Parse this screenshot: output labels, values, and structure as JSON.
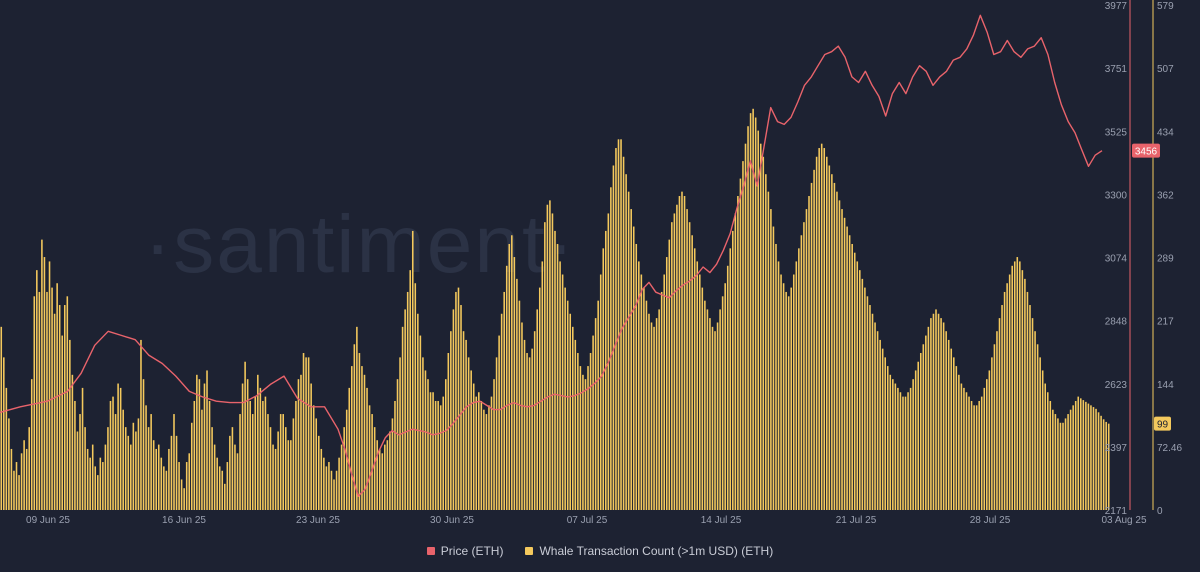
{
  "chart_data": {
    "type": "bar",
    "watermark": "·santiment·",
    "x_ticks": [
      "09 Jun 25",
      "16 Jun 25",
      "23 Jun 25",
      "30 Jun 25",
      "07 Jul 25",
      "14 Jul 25",
      "21 Jul 25",
      "28 Jul 25",
      "03 Aug 25"
    ],
    "price_axis": {
      "ticks": [
        "3977",
        "3751",
        "3525",
        "3300",
        "3074",
        "2848",
        "2623",
        "2397",
        "2171"
      ],
      "min": 2171,
      "max": 3977,
      "current_label": "3456",
      "current_value": 3456
    },
    "count_axis": {
      "ticks": [
        "579",
        "507",
        "434",
        "362",
        "289",
        "217",
        "144",
        "72.46",
        "0"
      ],
      "min": 0,
      "max": 579,
      "current_label": "99",
      "current_value": 99
    },
    "colors": {
      "price": "#e8636b",
      "whale": "#f4c95d",
      "background": "#1d2232",
      "axis_text": "#9aa0b0"
    },
    "series": [
      {
        "name": "Price (ETH)",
        "axis": "right-outer",
        "render": "line",
        "points": [
          [
            0,
            2520
          ],
          [
            3,
            2540
          ],
          [
            7,
            2560
          ],
          [
            10,
            2595
          ],
          [
            12,
            2660
          ],
          [
            14,
            2760
          ],
          [
            16,
            2810
          ],
          [
            18,
            2795
          ],
          [
            20,
            2780
          ],
          [
            22,
            2725
          ],
          [
            24,
            2695
          ],
          [
            26,
            2650
          ],
          [
            28,
            2595
          ],
          [
            30,
            2575
          ],
          [
            32,
            2560
          ],
          [
            34,
            2555
          ],
          [
            36,
            2555
          ],
          [
            38,
            2580
          ],
          [
            40,
            2620
          ],
          [
            42,
            2650
          ],
          [
            44,
            2570
          ],
          [
            46,
            2540
          ],
          [
            48,
            2540
          ],
          [
            49,
            2500
          ],
          [
            50,
            2460
          ],
          [
            51,
            2390
          ],
          [
            52,
            2300
          ],
          [
            53,
            2220
          ],
          [
            54,
            2245
          ],
          [
            55,
            2310
          ],
          [
            56,
            2380
          ],
          [
            57,
            2430
          ],
          [
            58,
            2455
          ],
          [
            59,
            2440
          ],
          [
            60,
            2450
          ],
          [
            61,
            2460
          ],
          [
            62,
            2455
          ],
          [
            63,
            2450
          ],
          [
            64,
            2440
          ],
          [
            65,
            2445
          ],
          [
            66,
            2455
          ],
          [
            67,
            2480
          ],
          [
            68,
            2510
          ],
          [
            69,
            2540
          ],
          [
            70,
            2555
          ],
          [
            71,
            2560
          ],
          [
            72,
            2545
          ],
          [
            73,
            2530
          ],
          [
            74,
            2530
          ],
          [
            75,
            2545
          ],
          [
            76,
            2555
          ],
          [
            77,
            2545
          ],
          [
            78,
            2540
          ],
          [
            79,
            2545
          ],
          [
            80,
            2560
          ],
          [
            81,
            2575
          ],
          [
            82,
            2585
          ],
          [
            83,
            2580
          ],
          [
            84,
            2575
          ],
          [
            85,
            2580
          ],
          [
            86,
            2590
          ],
          [
            87,
            2605
          ],
          [
            88,
            2625
          ],
          [
            89,
            2650
          ],
          [
            90,
            2700
          ],
          [
            91,
            2760
          ],
          [
            92,
            2820
          ],
          [
            93,
            2860
          ],
          [
            94,
            2900
          ],
          [
            95,
            2960
          ],
          [
            96,
            2985
          ],
          [
            97,
            2950
          ],
          [
            98,
            2940
          ],
          [
            99,
            2930
          ],
          [
            100,
            2955
          ],
          [
            101,
            2975
          ],
          [
            102,
            2990
          ],
          [
            103,
            3010
          ],
          [
            104,
            3040
          ],
          [
            105,
            3020
          ],
          [
            106,
            3050
          ],
          [
            107,
            3100
          ],
          [
            108,
            3160
          ],
          [
            109,
            3250
          ],
          [
            110,
            3330
          ],
          [
            111,
            3420
          ],
          [
            112,
            3330
          ],
          [
            113,
            3470
          ],
          [
            114,
            3610
          ],
          [
            115,
            3560
          ],
          [
            116,
            3550
          ],
          [
            117,
            3575
          ],
          [
            118,
            3630
          ],
          [
            119,
            3690
          ],
          [
            120,
            3720
          ],
          [
            121,
            3760
          ],
          [
            122,
            3800
          ],
          [
            123,
            3810
          ],
          [
            124,
            3830
          ],
          [
            125,
            3790
          ],
          [
            126,
            3720
          ],
          [
            127,
            3700
          ],
          [
            128,
            3740
          ],
          [
            129,
            3690
          ],
          [
            130,
            3650
          ],
          [
            131,
            3580
          ],
          [
            132,
            3660
          ],
          [
            133,
            3700
          ],
          [
            134,
            3660
          ],
          [
            135,
            3720
          ],
          [
            136,
            3760
          ],
          [
            137,
            3740
          ],
          [
            138,
            3690
          ],
          [
            139,
            3720
          ],
          [
            140,
            3740
          ],
          [
            141,
            3780
          ],
          [
            142,
            3790
          ],
          [
            143,
            3820
          ],
          [
            144,
            3870
          ],
          [
            145,
            3940
          ],
          [
            146,
            3880
          ],
          [
            147,
            3800
          ],
          [
            148,
            3810
          ],
          [
            149,
            3850
          ],
          [
            150,
            3810
          ],
          [
            151,
            3790
          ],
          [
            152,
            3820
          ],
          [
            153,
            3830
          ],
          [
            154,
            3860
          ],
          [
            155,
            3800
          ],
          [
            156,
            3700
          ],
          [
            157,
            3620
          ],
          [
            158,
            3560
          ],
          [
            159,
            3520
          ],
          [
            160,
            3460
          ],
          [
            161,
            3400
          ],
          [
            162,
            3440
          ],
          [
            163,
            3456
          ]
        ]
      },
      {
        "name": "Whale Transaction Count (>1m USD) (ETH)",
        "axis": "right-inner",
        "render": "bars",
        "values": [
          210,
          175,
          140,
          105,
          70,
          45,
          55,
          40,
          65,
          80,
          70,
          95,
          150,
          245,
          275,
          250,
          310,
          290,
          250,
          285,
          255,
          225,
          260,
          235,
          200,
          235,
          245,
          195,
          155,
          125,
          90,
          110,
          140,
          95,
          70,
          60,
          75,
          50,
          40,
          60,
          55,
          75,
          95,
          125,
          130,
          110,
          145,
          140,
          115,
          95,
          85,
          75,
          100,
          90,
          105,
          195,
          150,
          120,
          95,
          110,
          80,
          70,
          75,
          60,
          50,
          45,
          70,
          85,
          110,
          85,
          55,
          35,
          25,
          55,
          65,
          100,
          125,
          155,
          150,
          115,
          145,
          160,
          125,
          95,
          75,
          60,
          50,
          45,
          30,
          55,
          85,
          95,
          75,
          65,
          110,
          145,
          170,
          150,
          125,
          110,
          130,
          155,
          140,
          125,
          130,
          110,
          95,
          75,
          70,
          90,
          110,
          110,
          95,
          80,
          80,
          105,
          125,
          150,
          155,
          180,
          175,
          175,
          145,
          120,
          105,
          85,
          70,
          60,
          50,
          55,
          45,
          35,
          45,
          60,
          75,
          95,
          115,
          140,
          165,
          190,
          210,
          180,
          165,
          155,
          140,
          120,
          110,
          95,
          80,
          70,
          65,
          75,
          80,
          90,
          105,
          125,
          150,
          175,
          210,
          230,
          250,
          275,
          320,
          260,
          225,
          200,
          175,
          160,
          150,
          135,
          135,
          125,
          125,
          120,
          130,
          150,
          180,
          205,
          230,
          250,
          255,
          235,
          205,
          195,
          175,
          160,
          145,
          130,
          135,
          125,
          115,
          110,
          120,
          130,
          150,
          175,
          200,
          225,
          250,
          280,
          305,
          315,
          290,
          265,
          240,
          215,
          195,
          180,
          175,
          185,
          205,
          230,
          255,
          285,
          330,
          350,
          355,
          340,
          320,
          305,
          285,
          270,
          255,
          240,
          225,
          210,
          195,
          180,
          165,
          155,
          150,
          165,
          180,
          200,
          220,
          240,
          270,
          300,
          320,
          340,
          370,
          395,
          415,
          425,
          425,
          405,
          385,
          365,
          345,
          325,
          305,
          285,
          270,
          255,
          240,
          225,
          215,
          210,
          220,
          230,
          250,
          270,
          290,
          310,
          330,
          340,
          350,
          360,
          365,
          360,
          345,
          330,
          315,
          300,
          285,
          270,
          255,
          240,
          230,
          220,
          210,
          205,
          215,
          230,
          245,
          260,
          280,
          300,
          320,
          340,
          360,
          380,
          400,
          420,
          440,
          455,
          460,
          450,
          435,
          420,
          405,
          385,
          365,
          345,
          325,
          305,
          285,
          270,
          260,
          250,
          245,
          255,
          270,
          285,
          300,
          315,
          330,
          345,
          360,
          375,
          390,
          405,
          415,
          420,
          415,
          405,
          395,
          385,
          375,
          365,
          355,
          345,
          335,
          325,
          315,
          305,
          295,
          285,
          275,
          265,
          255,
          245,
          235,
          225,
          215,
          205,
          195,
          185,
          175,
          165,
          155,
          150,
          145,
          140,
          135,
          130,
          130,
          135,
          140,
          150,
          160,
          170,
          180,
          190,
          200,
          210,
          220,
          225,
          230,
          225,
          220,
          215,
          205,
          195,
          185,
          175,
          165,
          155,
          145,
          140,
          135,
          130,
          125,
          120,
          120,
          125,
          130,
          140,
          150,
          160,
          175,
          190,
          205,
          220,
          235,
          250,
          260,
          270,
          280,
          285,
          290,
          285,
          275,
          265,
          250,
          235,
          220,
          205,
          190,
          175,
          160,
          145,
          135,
          125,
          115,
          110,
          105,
          100,
          100,
          105,
          110,
          115,
          120,
          125,
          130,
          128,
          126,
          124,
          122,
          120,
          118,
          116,
          112,
          108,
          104,
          101,
          99
        ]
      }
    ],
    "legend": {
      "placement": "bottom-center",
      "items": [
        "Price (ETH)",
        "Whale Transaction Count (>1m USD) (ETH)"
      ]
    }
  }
}
